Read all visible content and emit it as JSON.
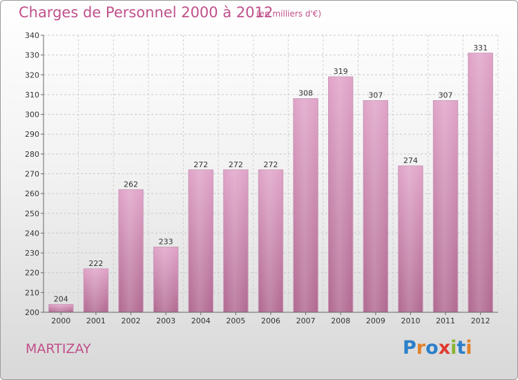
{
  "header": {
    "title": "Charges de Personnel 2000 à 2012",
    "subtitle": "(en milliers d'€)"
  },
  "commune": "MARTIZAY",
  "logo": {
    "text": "Proxiti"
  },
  "chart_data": {
    "type": "bar",
    "categories": [
      "2000",
      "2001",
      "2002",
      "2003",
      "2004",
      "2005",
      "2006",
      "2007",
      "2008",
      "2009",
      "2010",
      "2011",
      "2012"
    ],
    "values": [
      204,
      222,
      262,
      233,
      272,
      272,
      272,
      308,
      319,
      307,
      274,
      307,
      331
    ],
    "title": "Charges de Personnel 2000 à 2012",
    "subtitle": "(en milliers d'€)",
    "xlabel": "",
    "ylabel": "",
    "ylim": [
      200,
      340
    ],
    "yticks": [
      200,
      210,
      220,
      230,
      240,
      250,
      260,
      270,
      280,
      290,
      300,
      310,
      320,
      330,
      340
    ],
    "grid": true,
    "bar_color": "#d98cb9",
    "bar_color_dark": "#b06890"
  }
}
